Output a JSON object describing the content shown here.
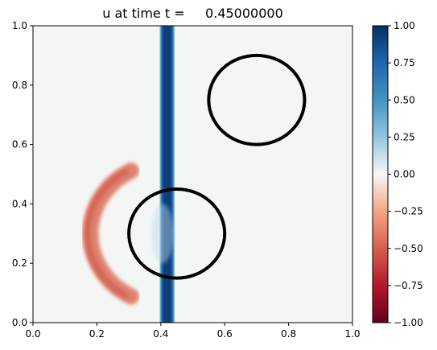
{
  "chart_data": {
    "type": "heatmap",
    "title": "u at time t =     0.45000000",
    "xlabel": "",
    "ylabel": "",
    "xlim": [
      0,
      1
    ],
    "ylim": [
      0,
      1
    ],
    "xticks": [
      "0.0",
      "0.2",
      "0.4",
      "0.6",
      "0.8",
      "1.0"
    ],
    "yticks": [
      "0.0",
      "0.2",
      "0.4",
      "0.6",
      "0.8",
      "1.0"
    ],
    "colormap": "RdBu",
    "clim": [
      -1,
      1
    ],
    "colorbar_ticks": [
      "1.00",
      "0.75",
      "0.50",
      "0.25",
      "0.00",
      "−0.25",
      "−0.50",
      "−0.75",
      "−1.00"
    ],
    "features": [
      {
        "kind": "vertical_band",
        "x_center": 0.42,
        "half_width": 0.025,
        "value": 1.0
      },
      {
        "kind": "arc_wave",
        "center": [
          0.42,
          0.3
        ],
        "radius": 0.24,
        "value": -0.45
      }
    ],
    "circles": [
      {
        "center": [
          0.7,
          0.75
        ],
        "radius_x": 0.15,
        "radius_y": 0.15
      },
      {
        "center": [
          0.45,
          0.3
        ],
        "radius_x": 0.15,
        "radius_y": 0.15
      }
    ],
    "grid": false,
    "colors": {
      "background_field": "#f4f6f6",
      "positive_max": "#053061",
      "negative_wave": "#ef9a7b",
      "obstacle_outline": "#000000"
    }
  }
}
